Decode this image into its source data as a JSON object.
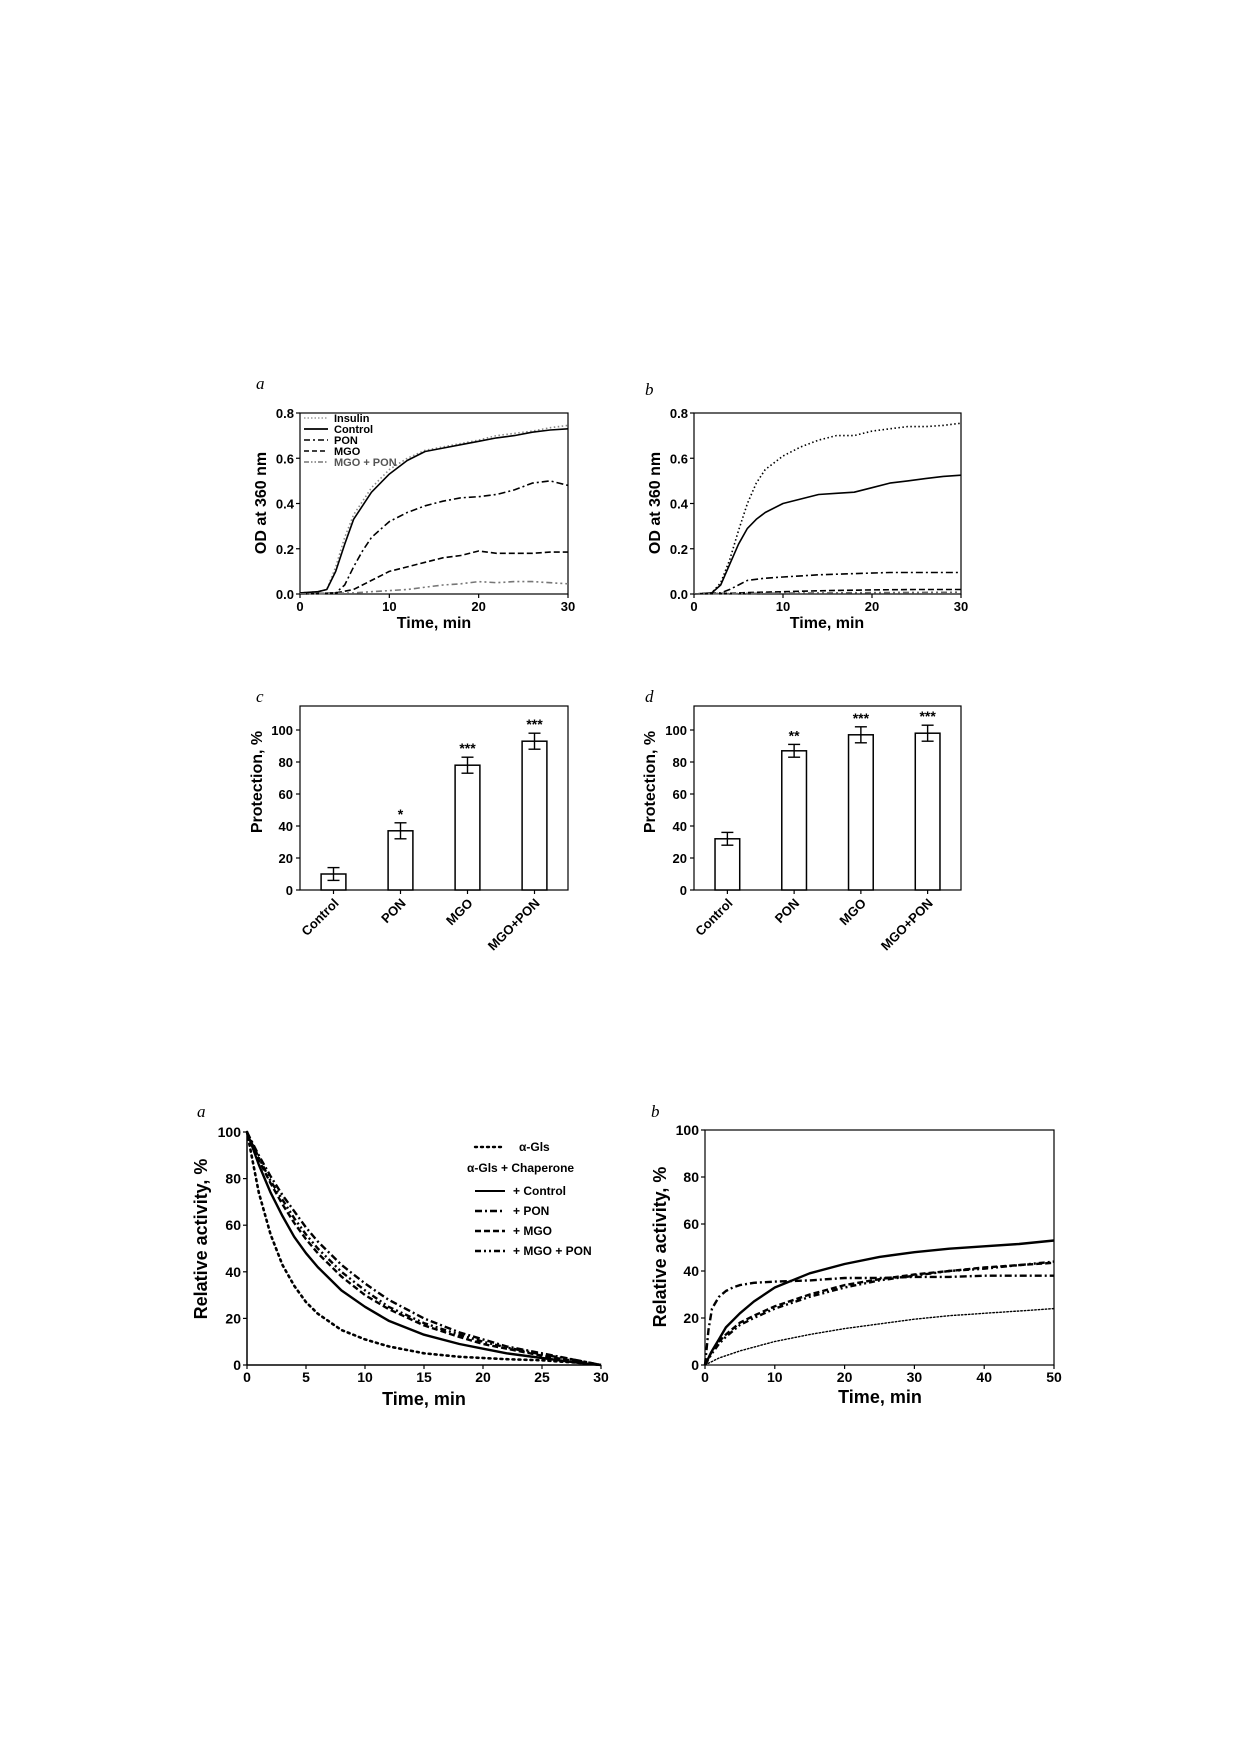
{
  "figure1": {
    "panel_a": {
      "letter": "a",
      "chart_data": {
        "type": "line",
        "xlabel": "Time, min",
        "ylabel": "OD at 360 nm",
        "xlim": [
          0,
          30
        ],
        "ylim": [
          0,
          0.8
        ],
        "xticks": [
          "0",
          "10",
          "20",
          "30"
        ],
        "yticks": [
          "0.0",
          "0.2",
          "0.4",
          "0.6",
          "0.8"
        ],
        "legend_position": "top-left",
        "series": [
          {
            "name": "Insulin",
            "style": "dotted",
            "color": "#888888",
            "x": [
              0,
              2,
              3,
              4,
              5,
              6,
              8,
              10,
              12,
              14,
              16,
              18,
              20,
              22,
              24,
              26,
              28,
              30
            ],
            "y": [
              0.005,
              0.01,
              0.02,
              0.12,
              0.25,
              0.35,
              0.47,
              0.55,
              0.6,
              0.635,
              0.65,
              0.665,
              0.68,
              0.7,
              0.71,
              0.72,
              0.735,
              0.745
            ]
          },
          {
            "name": "Control",
            "style": "solid",
            "color": "#000000",
            "x": [
              0,
              2,
              3,
              4,
              5,
              6,
              8,
              10,
              12,
              14,
              16,
              18,
              20,
              22,
              24,
              26,
              28,
              30
            ],
            "y": [
              0.005,
              0.01,
              0.02,
              0.1,
              0.22,
              0.33,
              0.45,
              0.53,
              0.59,
              0.63,
              0.645,
              0.66,
              0.675,
              0.69,
              0.7,
              0.715,
              0.725,
              0.73
            ]
          },
          {
            "name": "PON",
            "style": "dashdot",
            "color": "#000000",
            "x": [
              0,
              4,
              5,
              6,
              7,
              8,
              10,
              12,
              14,
              16,
              18,
              20,
              22,
              24,
              26,
              28,
              30
            ],
            "y": [
              0,
              0.005,
              0.04,
              0.12,
              0.19,
              0.25,
              0.32,
              0.36,
              0.39,
              0.41,
              0.425,
              0.43,
              0.44,
              0.46,
              0.49,
              0.5,
              0.48
            ]
          },
          {
            "name": "MGO",
            "style": "dashed",
            "color": "#000000",
            "x": [
              0,
              4,
              6,
              8,
              10,
              12,
              14,
              16,
              18,
              20,
              22,
              24,
              26,
              28,
              30
            ],
            "y": [
              0,
              0.005,
              0.02,
              0.06,
              0.1,
              0.12,
              0.14,
              0.16,
              0.17,
              0.19,
              0.18,
              0.18,
              0.18,
              0.185,
              0.185
            ]
          },
          {
            "name": "MGO + PON",
            "style": "dashdotdot",
            "color": "#777777",
            "x": [
              0,
              6,
              8,
              10,
              12,
              14,
              16,
              18,
              20,
              22,
              24,
              26,
              28,
              30
            ],
            "y": [
              0,
              0.005,
              0.01,
              0.015,
              0.02,
              0.03,
              0.04,
              0.045,
              0.055,
              0.05,
              0.055,
              0.055,
              0.05,
              0.045
            ]
          }
        ]
      }
    },
    "panel_b": {
      "letter": "b",
      "chart_data": {
        "type": "line",
        "xlabel": "Time, min",
        "ylabel": "OD at 360 nm",
        "xlim": [
          0,
          30
        ],
        "ylim": [
          0,
          0.8
        ],
        "xticks": [
          "0",
          "10",
          "20",
          "30"
        ],
        "yticks": [
          "0.0",
          "0.2",
          "0.4",
          "0.6",
          "0.8"
        ],
        "series": [
          {
            "style": "dotted",
            "color": "#000000",
            "x": [
              0,
              2,
              3,
              4,
              5,
              6,
              7,
              8,
              10,
              12,
              14,
              16,
              18,
              20,
              22,
              24,
              26,
              28,
              30
            ],
            "y": [
              0,
              0.005,
              0.05,
              0.15,
              0.28,
              0.4,
              0.49,
              0.55,
              0.61,
              0.65,
              0.68,
              0.7,
              0.7,
              0.72,
              0.73,
              0.74,
              0.74,
              0.745,
              0.755
            ]
          },
          {
            "style": "solid",
            "color": "#000000",
            "x": [
              0,
              2,
              3,
              4,
              5,
              6,
              7,
              8,
              10,
              12,
              14,
              16,
              18,
              20,
              22,
              24,
              26,
              28,
              30
            ],
            "y": [
              0,
              0.005,
              0.04,
              0.13,
              0.22,
              0.29,
              0.33,
              0.36,
              0.4,
              0.42,
              0.44,
              0.445,
              0.45,
              0.47,
              0.49,
              0.5,
              0.51,
              0.52,
              0.525
            ]
          },
          {
            "style": "dashdot",
            "color": "#000000",
            "x": [
              0,
              3,
              4,
              5,
              6,
              8,
              10,
              14,
              18,
              22,
              26,
              30
            ],
            "y": [
              0,
              0.005,
              0.02,
              0.04,
              0.06,
              0.07,
              0.075,
              0.085,
              0.09,
              0.095,
              0.095,
              0.095
            ]
          },
          {
            "style": "dashed",
            "color": "#000000",
            "x": [
              0,
              4,
              6,
              10,
              15,
              20,
              25,
              30
            ],
            "y": [
              0,
              0.003,
              0.006,
              0.01,
              0.015,
              0.018,
              0.02,
              0.02
            ]
          },
          {
            "style": "dashdotdot",
            "color": "#666666",
            "x": [
              0,
              5,
              10,
              15,
              20,
              25,
              30
            ],
            "y": [
              0,
              0.002,
              0.004,
              0.005,
              0.006,
              0.007,
              0.008
            ]
          }
        ]
      }
    },
    "panel_c": {
      "letter": "c",
      "chart_data": {
        "type": "bar",
        "ylabel": "Protection, %",
        "ylim": [
          0,
          115
        ],
        "yticks": [
          "0",
          "20",
          "40",
          "60",
          "80",
          "100"
        ],
        "categories": [
          "Control",
          "PON",
          "MGO",
          "MGO+PON"
        ],
        "values": [
          10,
          37,
          78,
          93
        ],
        "errors": [
          4,
          5,
          5,
          5
        ],
        "significance": [
          "",
          "*",
          "***",
          "***"
        ]
      }
    },
    "panel_d": {
      "letter": "d",
      "chart_data": {
        "type": "bar",
        "ylabel": "Protection, %",
        "ylim": [
          0,
          115
        ],
        "yticks": [
          "0",
          "20",
          "40",
          "60",
          "80",
          "100"
        ],
        "categories": [
          "Control",
          "PON",
          "MGO",
          "MGO+PON"
        ],
        "values": [
          32,
          87,
          97,
          98
        ],
        "errors": [
          4,
          4,
          5,
          5
        ],
        "significance": [
          "",
          "**",
          "***",
          "***"
        ]
      }
    }
  },
  "figure2": {
    "panel_a": {
      "letter": "a",
      "chart_data": {
        "type": "line",
        "xlabel": "Time, min",
        "ylabel": "Relative activity, %",
        "xlim": [
          0,
          30
        ],
        "ylim": [
          0,
          100
        ],
        "xticks": [
          "0",
          "5",
          "10",
          "15",
          "20",
          "25",
          "30"
        ],
        "yticks": [
          "0",
          "20",
          "40",
          "60",
          "80",
          "100"
        ],
        "legend_position": "top-right",
        "legend_heading": "α-Gls + Chaperone",
        "series": [
          {
            "name": "α-Gls",
            "style": "dotted",
            "x": [
              0,
              1,
              2,
              3,
              4,
              5,
              6,
              8,
              10,
              12,
              15,
              18,
              20,
              22,
              25,
              28,
              30
            ],
            "y": [
              100,
              74,
              56,
              43,
              34,
              27,
              22,
              15,
              11,
              8,
              5,
              3.5,
              3,
              2.5,
              2,
              1,
              0
            ]
          },
          {
            "name": "+ Control",
            "style": "solid",
            "x": [
              0,
              1,
              2,
              3,
              4,
              5,
              6,
              8,
              10,
              12,
              15,
              18,
              20,
              22,
              25,
              28,
              30
            ],
            "y": [
              100,
              86,
              74,
              64,
              55,
              48,
              42,
              32,
              25,
              19,
              13,
              9,
              7,
              5,
              3,
              1,
              0
            ]
          },
          {
            "name": "+ PON",
            "style": "dashdot",
            "x": [
              0,
              1,
              2,
              3,
              4,
              5,
              6,
              8,
              10,
              12,
              15,
              18,
              20,
              22,
              25,
              28,
              30
            ],
            "y": [
              100,
              90,
              81,
              73,
              66,
              59,
              53,
              43,
              35,
              28,
              20,
              14,
              11,
              8,
              5,
              2,
              0
            ]
          },
          {
            "name": "+ MGO",
            "style": "dashed",
            "x": [
              0,
              1,
              2,
              3,
              4,
              5,
              6,
              8,
              10,
              12,
              15,
              18,
              20,
              22,
              25,
              28,
              30
            ],
            "y": [
              100,
              88,
              78,
              69,
              61,
              54,
              48,
              38,
              30,
              24,
              17,
              12,
              9,
              7,
              4,
              1.5,
              0
            ]
          },
          {
            "name": "+ MGO + PON",
            "style": "dashdotdot",
            "x": [
              0,
              1,
              2,
              3,
              4,
              5,
              6,
              8,
              10,
              12,
              15,
              18,
              20,
              22,
              25,
              28,
              30
            ],
            "y": [
              100,
              89,
              79,
              71,
              63,
              56,
              50,
              40,
              32,
              25,
              18,
              13,
              10,
              7.5,
              4.5,
              2,
              0
            ]
          }
        ]
      }
    },
    "panel_b": {
      "letter": "b",
      "chart_data": {
        "type": "line",
        "xlabel": "Time, min",
        "ylabel": "Relative activity, %",
        "xlim": [
          0,
          50
        ],
        "ylim": [
          0,
          100
        ],
        "xticks": [
          "0",
          "10",
          "20",
          "30",
          "40",
          "50"
        ],
        "yticks": [
          "0",
          "20",
          "40",
          "60",
          "80",
          "100"
        ],
        "series": [
          {
            "style": "dotted",
            "x": [
              0,
              2,
              5,
              10,
              15,
              20,
              25,
              30,
              35,
              40,
              45,
              50
            ],
            "y": [
              0,
              3,
              6,
              10,
              13,
              15.5,
              17.5,
              19.5,
              21,
              22,
              23,
              24
            ]
          },
          {
            "style": "solid",
            "x": [
              0,
              1,
              2,
              3,
              5,
              7,
              10,
              15,
              20,
              25,
              30,
              35,
              40,
              45,
              50
            ],
            "y": [
              0,
              6,
              11,
              16,
              22,
              27,
              33,
              39,
              43,
              46,
              48,
              49.5,
              50.5,
              51.5,
              53
            ]
          },
          {
            "style": "dashdot",
            "x": [
              0,
              0.5,
              1,
              2,
              3,
              4,
              5,
              7,
              10,
              15,
              20,
              25,
              30,
              35,
              40,
              45,
              50
            ],
            "y": [
              0,
              15,
              24,
              29,
              31.5,
              33,
              34,
              35,
              35.5,
              36,
              37,
              37,
              37.5,
              37.5,
              38,
              38,
              38
            ]
          },
          {
            "style": "dashed",
            "x": [
              0,
              1,
              2,
              3,
              5,
              7,
              10,
              15,
              20,
              25,
              30,
              35,
              40,
              45,
              50
            ],
            "y": [
              0,
              6,
              10,
              13,
              18,
              21,
              25,
              30,
              34,
              36.5,
              38.5,
              40,
              41.5,
              42.5,
              43.5
            ]
          },
          {
            "style": "dashdotdot",
            "x": [
              0,
              1,
              2,
              3,
              5,
              7,
              10,
              15,
              20,
              25,
              30,
              35,
              40,
              45,
              50
            ],
            "y": [
              0,
              5,
              9,
              12,
              17,
              20,
              24,
              29,
              33,
              36,
              38,
              40,
              41,
              42.5,
              44
            ]
          }
        ]
      }
    }
  }
}
